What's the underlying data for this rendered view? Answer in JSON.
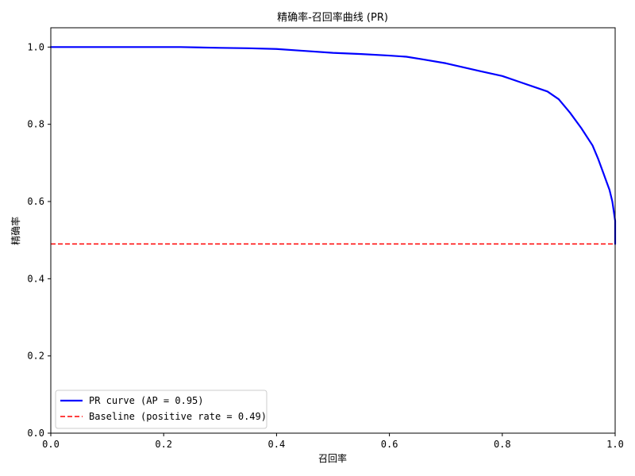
{
  "chart_data": {
    "type": "line",
    "title": "精确率-召回率曲线 (PR)",
    "xlabel": "召回率",
    "ylabel": "精确率",
    "xlim": [
      0,
      1
    ],
    "ylim": [
      0,
      1.05
    ],
    "xticks": [
      0.0,
      0.2,
      0.4,
      0.6,
      0.8,
      1.0
    ],
    "yticks": [
      0.0,
      0.2,
      0.4,
      0.6,
      0.8,
      1.0
    ],
    "xtick_labels": [
      "0.0",
      "0.2",
      "0.4",
      "0.6",
      "0.8",
      "1.0"
    ],
    "ytick_labels": [
      "0.0",
      "0.2",
      "0.4",
      "0.6",
      "0.8",
      "1.0"
    ],
    "grid": false,
    "legend": {
      "placement": "lower-left"
    },
    "series": [
      {
        "name": "PR curve (AP = 0.95)",
        "color": "#0000ff",
        "style": "solid",
        "x": [
          0.0,
          0.1,
          0.2,
          0.23,
          0.3,
          0.35,
          0.4,
          0.45,
          0.5,
          0.55,
          0.6,
          0.63,
          0.66,
          0.7,
          0.73,
          0.76,
          0.8,
          0.83,
          0.86,
          0.88,
          0.9,
          0.92,
          0.94,
          0.96,
          0.97,
          0.98,
          0.99,
          0.995,
          1.0,
          1.0
        ],
        "y": [
          1.0,
          1.0,
          1.0,
          1.0,
          0.998,
          0.997,
          0.995,
          0.99,
          0.985,
          0.982,
          0.978,
          0.975,
          0.968,
          0.958,
          0.948,
          0.938,
          0.925,
          0.91,
          0.895,
          0.885,
          0.865,
          0.83,
          0.79,
          0.745,
          0.71,
          0.67,
          0.63,
          0.6,
          0.55,
          0.49
        ]
      },
      {
        "name": "Baseline (positive rate = 0.49)",
        "color": "#ff0000",
        "style": "dashed",
        "x": [
          0.0,
          1.0
        ],
        "y": [
          0.49,
          0.49
        ]
      }
    ]
  }
}
